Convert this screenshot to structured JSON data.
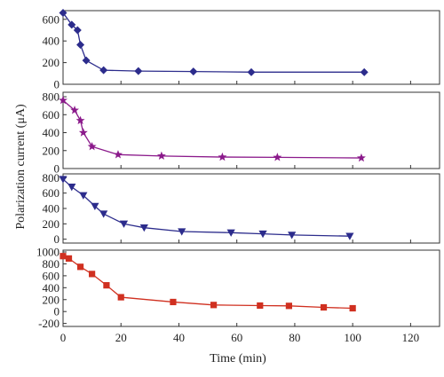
{
  "chart_data": {
    "type": "line",
    "xlabel": "Time (min)",
    "ylabel": "Polarization current (μA)",
    "xlim": [
      0,
      130
    ],
    "x_ticks": [
      0,
      20,
      40,
      60,
      80,
      100,
      120
    ],
    "grid": false,
    "panels": [
      {
        "marker": "diamond",
        "color": "#2c2c8c",
        "ylim": [
          0,
          680
        ],
        "y_ticks": [
          0,
          200,
          400,
          600
        ],
        "x": [
          0,
          3,
          5,
          6,
          8,
          14,
          26,
          45,
          65,
          104
        ],
        "values": [
          660,
          550,
          500,
          365,
          220,
          130,
          122,
          118,
          112,
          112
        ]
      },
      {
        "marker": "star",
        "color": "#8b1a8b",
        "ylim": [
          0,
          850
        ],
        "y_ticks": [
          0,
          200,
          400,
          600,
          800
        ],
        "x": [
          0,
          4,
          6,
          7,
          10,
          19,
          34,
          55,
          74,
          103
        ],
        "values": [
          760,
          650,
          535,
          400,
          245,
          155,
          140,
          128,
          125,
          118
        ]
      },
      {
        "marker": "triangle-down",
        "color": "#2c2c8c",
        "ylim": [
          -50,
          850
        ],
        "y_ticks": [
          0,
          200,
          400,
          600,
          800
        ],
        "x": [
          0,
          3,
          7,
          11,
          14,
          21,
          28,
          41,
          58,
          69,
          79,
          99
        ],
        "values": [
          780,
          680,
          570,
          430,
          330,
          200,
          150,
          100,
          85,
          70,
          55,
          40
        ]
      },
      {
        "marker": "square",
        "color": "#d03020",
        "ylim": [
          -250,
          1030
        ],
        "y_ticks": [
          -200,
          0,
          200,
          400,
          600,
          800,
          1000
        ],
        "x": [
          0,
          2,
          6,
          10,
          15,
          20,
          38,
          52,
          68,
          78,
          90,
          100
        ],
        "values": [
          930,
          890,
          750,
          630,
          440,
          240,
          160,
          110,
          100,
          95,
          70,
          55
        ]
      }
    ]
  }
}
